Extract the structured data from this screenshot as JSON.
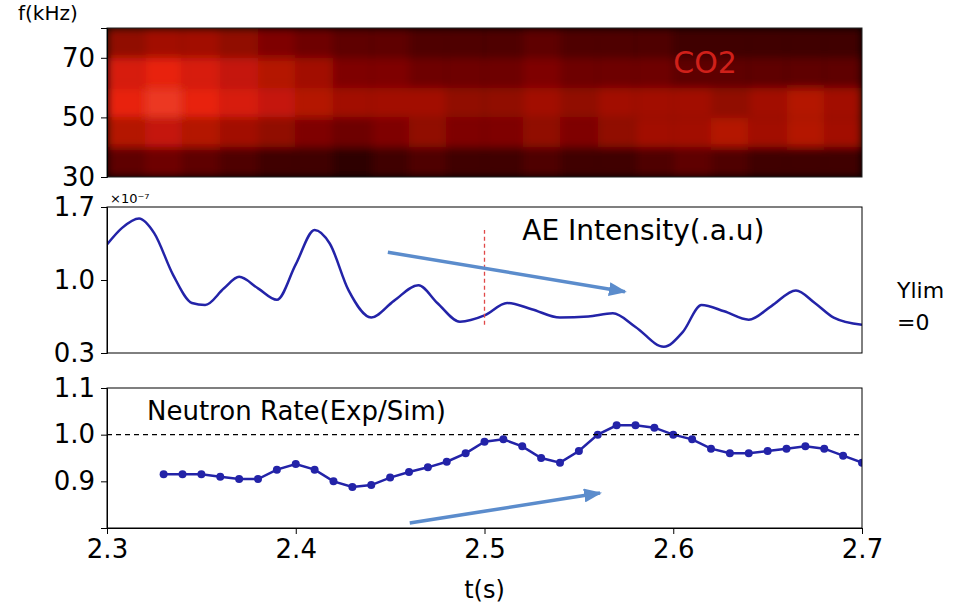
{
  "chart_data": [
    {
      "type": "heatmap",
      "y_label": "f(kHz)",
      "annotations": [
        "CO2"
      ],
      "xlim": [
        2.3,
        2.7
      ],
      "ylim": [
        30,
        80
      ],
      "yticks": [
        30,
        50,
        70
      ],
      "tick_labels": "y",
      "grid": false,
      "x_edges": [
        2.3,
        2.32,
        2.34,
        2.36,
        2.38,
        2.4,
        2.42,
        2.44,
        2.46,
        2.48,
        2.5,
        2.52,
        2.54,
        2.56,
        2.58,
        2.6,
        2.62,
        2.64,
        2.66,
        2.68,
        2.7
      ],
      "y_edges": [
        30,
        40,
        50,
        60,
        70,
        80
      ],
      "zlim": [
        0,
        1
      ],
      "cells": [
        [
          0.3,
          0.35,
          0.3,
          0.25,
          0.2,
          0.2,
          0.15,
          0.2,
          0.25,
          0.2,
          0.2,
          0.25,
          0.2,
          0.2,
          0.25,
          0.3,
          0.25,
          0.2,
          0.2,
          0.2
        ],
        [
          0.55,
          0.6,
          0.55,
          0.5,
          0.45,
          0.4,
          0.35,
          0.4,
          0.45,
          0.4,
          0.4,
          0.45,
          0.4,
          0.45,
          0.5,
          0.5,
          0.55,
          0.5,
          0.55,
          0.5
        ],
        [
          0.7,
          0.75,
          0.7,
          0.65,
          0.6,
          0.55,
          0.5,
          0.5,
          0.5,
          0.45,
          0.45,
          0.5,
          0.45,
          0.5,
          0.5,
          0.5,
          0.45,
          0.5,
          0.55,
          0.5
        ],
        [
          0.65,
          0.7,
          0.65,
          0.6,
          0.55,
          0.5,
          0.4,
          0.4,
          0.35,
          0.35,
          0.35,
          0.4,
          0.35,
          0.35,
          0.35,
          0.3,
          0.3,
          0.3,
          0.3,
          0.3
        ],
        [
          0.45,
          0.5,
          0.5,
          0.45,
          0.4,
          0.35,
          0.3,
          0.3,
          0.25,
          0.25,
          0.25,
          0.3,
          0.25,
          0.25,
          0.25,
          0.2,
          0.2,
          0.2,
          0.2,
          0.2
        ]
      ]
    },
    {
      "type": "line",
      "title": "AE Intensity(.a.u)",
      "y_label": "×10⁻⁷",
      "annotations": [
        "Ylim",
        "=0"
      ],
      "xlim": [
        2.3,
        2.7
      ],
      "ylim": [
        0.3,
        1.7
      ],
      "yticks": [
        0.3,
        {
          "value": 1,
          "label": "1.0"
        },
        1.7
      ],
      "tick_labels": "y",
      "grid": false,
      "color": "#2323a8",
      "x": [
        2.3,
        2.308,
        2.317,
        2.325,
        2.335,
        2.345,
        2.352,
        2.362,
        2.37,
        2.38,
        2.39,
        2.4,
        2.41,
        2.418,
        2.428,
        2.44,
        2.452,
        2.465,
        2.475,
        2.487,
        2.5,
        2.512,
        2.525,
        2.54,
        2.555,
        2.568,
        2.58,
        2.595,
        2.605,
        2.615,
        2.627,
        2.64,
        2.652,
        2.665,
        2.675,
        2.685,
        2.7
      ],
      "values": [
        1.34,
        1.5,
        1.59,
        1.45,
        1.05,
        0.78,
        0.76,
        0.92,
        1.03,
        0.92,
        0.81,
        1.15,
        1.48,
        1.35,
        0.9,
        0.64,
        0.8,
        0.95,
        0.78,
        0.6,
        0.66,
        0.78,
        0.72,
        0.64,
        0.65,
        0.68,
        0.55,
        0.36,
        0.5,
        0.76,
        0.7,
        0.62,
        0.75,
        0.9,
        0.78,
        0.64,
        0.57
      ],
      "vline": {
        "x": 2.5,
        "y": [
          0.57,
          1.48
        ]
      }
    },
    {
      "type": "line",
      "title": "Neutron Rate(Exp/Sim)",
      "x_label": "t(s)",
      "xlim": [
        2.3,
        2.7
      ],
      "ylim": [
        0.8,
        1.1
      ],
      "xticks": [
        2.3,
        2.4,
        2.5,
        2.6,
        2.7
      ],
      "yticks": [
        0.9,
        {
          "value": 1,
          "label": "1.0"
        },
        1.1
      ],
      "grid": false,
      "color": "#2323a8",
      "marker": "circle",
      "x": [
        2.33,
        2.34,
        2.35,
        2.36,
        2.37,
        2.38,
        2.39,
        2.4,
        2.41,
        2.42,
        2.43,
        2.44,
        2.45,
        2.46,
        2.47,
        2.48,
        2.49,
        2.5,
        2.51,
        2.52,
        2.53,
        2.54,
        2.55,
        2.56,
        2.57,
        2.58,
        2.59,
        2.6,
        2.61,
        2.62,
        2.63,
        2.64,
        2.65,
        2.66,
        2.67,
        2.68,
        2.69,
        2.7
      ],
      "values": [
        0.915,
        0.915,
        0.915,
        0.91,
        0.905,
        0.905,
        0.925,
        0.937,
        0.925,
        0.9,
        0.888,
        0.892,
        0.908,
        0.92,
        0.93,
        0.942,
        0.96,
        0.985,
        0.99,
        0.975,
        0.95,
        0.94,
        0.965,
        1.0,
        1.02,
        1.02,
        1.015,
        1.0,
        0.99,
        0.97,
        0.96,
        0.96,
        0.965,
        0.97,
        0.975,
        0.97,
        0.955,
        0.94
      ],
      "hline": 1
    }
  ]
}
